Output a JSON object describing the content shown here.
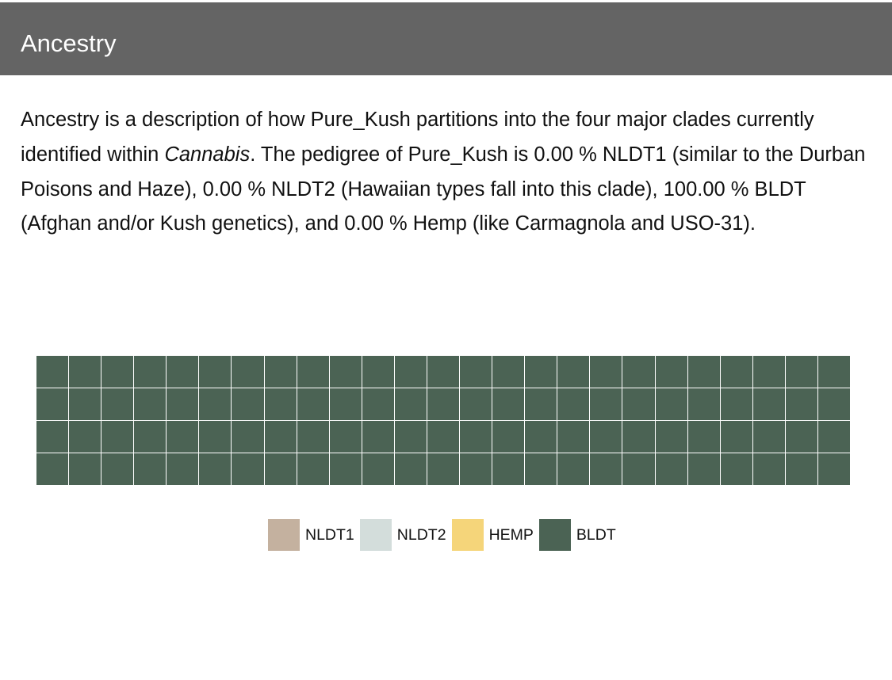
{
  "header": {
    "title": "Ancestry"
  },
  "description": {
    "part1": "Ancestry is a description of how Pure_Kush partitions into the four major clades currently identified within ",
    "genus": "Cannabis",
    "part2": ". The pedigree of Pure_Kush is 0.00 % NLDT1 (similar to the Durban Poisons and Haze), 0.00 % NLDT2 (Hawaiian types fall into this clade), 100.00 % BLDT (Afghan and/or Kush genetics), and 0.00 % Hemp (like Carmagnola and USO-31)."
  },
  "chart_data": {
    "type": "waffle",
    "rows": 4,
    "columns": 25,
    "categories": [
      "NLDT1",
      "NLDT2",
      "HEMP",
      "BLDT"
    ],
    "values": [
      0,
      0,
      0,
      100
    ],
    "colors": [
      "#c4b19f",
      "#d3dddb",
      "#f5d57a",
      "#4b6354"
    ],
    "legend": {
      "placement": "bottom-center",
      "items": [
        {
          "label": "NLDT1",
          "color": "#c4b19f"
        },
        {
          "label": "NLDT2",
          "color": "#d3dddb"
        },
        {
          "label": "HEMP",
          "color": "#f5d57a"
        },
        {
          "label": "BLDT",
          "color": "#4b6354"
        }
      ]
    }
  }
}
